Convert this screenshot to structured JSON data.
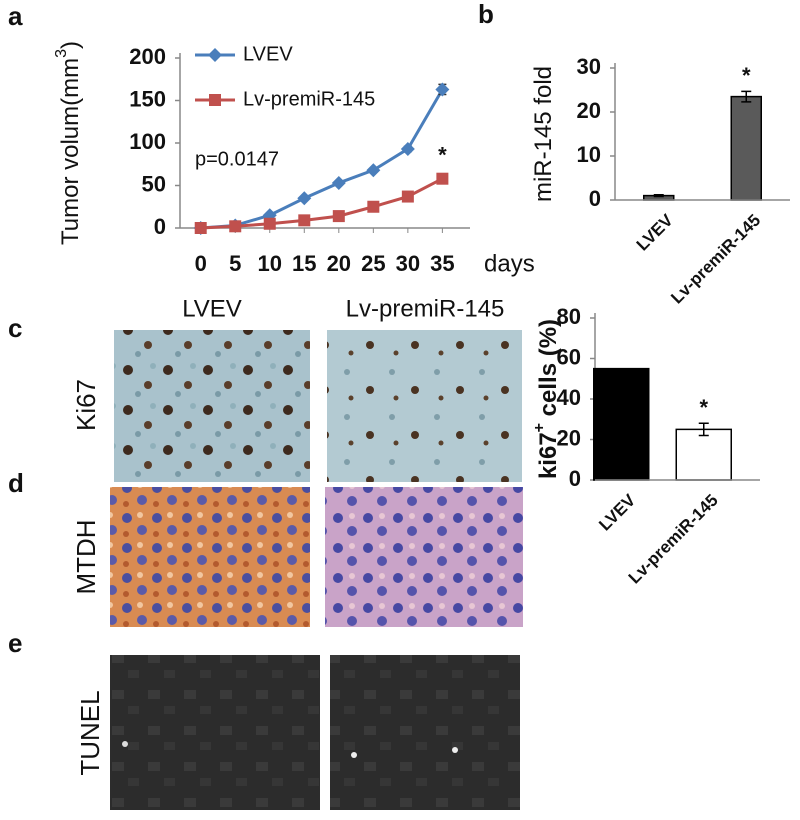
{
  "figure": {
    "panel_labels": [
      "a",
      "b",
      "c",
      "d",
      "e"
    ],
    "column_headers": [
      "LVEV",
      "Lv-premiR-145"
    ],
    "row_labels": [
      "Ki67",
      "MTDH",
      "TUNEL"
    ]
  },
  "chart_data": [
    {
      "type": "line",
      "ylabel": [
        "Tumor volum(mm",
        "3",
        ")"
      ],
      "xlabel": "days",
      "x": [
        0,
        5,
        10,
        15,
        20,
        25,
        30,
        35
      ],
      "xlim": [
        -3,
        39
      ],
      "xticks": [
        0,
        5,
        10,
        15,
        20,
        25,
        30,
        35
      ],
      "ylim": [
        0,
        200
      ],
      "yticks": [
        0,
        50,
        100,
        150,
        200
      ],
      "legend": "upper left",
      "series": [
        {
          "name": "LVEV",
          "color": "#4a7ebb",
          "marker": "diamond",
          "values": [
            0,
            3,
            15,
            35,
            53,
            68,
            93,
            163
          ],
          "errors": [
            0,
            0,
            0,
            0,
            0,
            0,
            3,
            6
          ]
        },
        {
          "name": "Lv-premiR-145",
          "color": "#c0504d",
          "marker": "square",
          "values": [
            0,
            2,
            5,
            9,
            14,
            25,
            37,
            58
          ],
          "errors": [
            0,
            0,
            0,
            0,
            0,
            0,
            0,
            3
          ]
        }
      ],
      "annotations": [
        "p=0.0147",
        "*"
      ]
    },
    {
      "type": "bar",
      "ylabel": [
        "miR-145 fold"
      ],
      "categories": [
        "LVEV",
        "Lv-premiR-145"
      ],
      "values": [
        1,
        23.5
      ],
      "errors": [
        0.2,
        1.2
      ],
      "colors": [
        "#5a5a5a",
        "#5a5a5a"
      ],
      "ylim": [
        0,
        30
      ],
      "yticks": [
        0,
        10,
        20,
        30
      ],
      "annotations": [
        "*"
      ]
    },
    {
      "type": "bar",
      "ylabel": [
        "ki67",
        "+",
        " cells (%)"
      ],
      "categories": [
        "LVEV",
        "Lv-premiR-145"
      ],
      "values": [
        55,
        25
      ],
      "errors": [
        0,
        3
      ],
      "colors": [
        "#000000",
        "#ffffff"
      ],
      "ylim": [
        0,
        80
      ],
      "yticks": [
        0,
        20,
        40,
        60,
        80
      ],
      "annotations": [
        "*"
      ]
    }
  ]
}
